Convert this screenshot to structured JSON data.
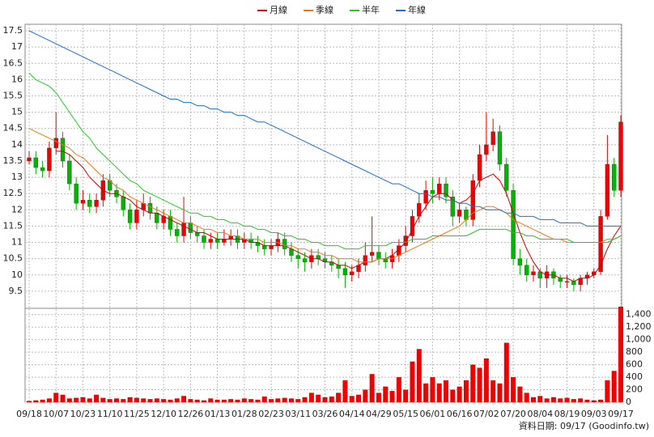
{
  "chart_data": {
    "type": "candlestick",
    "legend": "top",
    "grid": true,
    "up_color": "#ee0000",
    "down_color": "#00b400",
    "categories": [
      "09/18",
      null,
      null,
      null,
      "10/07",
      null,
      null,
      null,
      "10/23",
      null,
      null,
      null,
      "11/10",
      null,
      null,
      null,
      "11/25",
      null,
      null,
      null,
      "12/10",
      null,
      null,
      null,
      "12/26",
      null,
      null,
      null,
      "01/13",
      null,
      null,
      null,
      "01/28",
      null,
      null,
      null,
      "02/23",
      null,
      null,
      null,
      "03/11",
      null,
      null,
      null,
      "03/26",
      null,
      null,
      null,
      "04/14",
      null,
      null,
      null,
      "04/29",
      null,
      null,
      null,
      "05/15",
      null,
      null,
      null,
      "06/01",
      null,
      null,
      null,
      "06/16",
      null,
      null,
      null,
      "07/02",
      null,
      null,
      null,
      "07/20",
      null,
      null,
      null,
      "08/04",
      null,
      null,
      null,
      "08/19",
      null,
      null,
      null,
      "09/03",
      null,
      null,
      null,
      "09/17"
    ],
    "open": [
      13.5,
      13.6,
      13.3,
      13.2,
      13.9,
      14.2,
      13.5,
      12.8,
      12.2,
      12.3,
      12.1,
      12.3,
      12.9,
      12.6,
      12.4,
      12.0,
      11.6,
      12.0,
      12.2,
      11.9,
      11.6,
      11.8,
      11.4,
      11.2,
      11.6,
      11.3,
      11.2,
      11.0,
      11.1,
      11.0,
      11.1,
      11.2,
      11.0,
      11.1,
      11.0,
      10.9,
      10.8,
      10.9,
      11.1,
      10.8,
      10.6,
      10.5,
      10.4,
      10.6,
      10.5,
      10.4,
      10.3,
      10.2,
      10.0,
      10.1,
      10.3,
      10.6,
      10.7,
      10.5,
      10.4,
      10.6,
      10.9,
      11.2,
      11.8,
      12.2,
      12.6,
      12.5,
      12.8,
      12.4,
      11.8,
      12.0,
      11.7,
      12.9,
      13.7,
      14.0,
      14.4,
      13.4,
      12.6,
      10.5,
      10.3,
      10.0,
      10.1,
      9.9,
      10.1,
      9.9,
      9.8,
      9.8,
      9.7,
      9.9,
      10.0,
      10.1,
      11.8,
      13.4,
      12.6
    ],
    "high": [
      13.8,
      13.8,
      13.5,
      14.1,
      15.0,
      14.4,
      13.7,
      13.0,
      12.6,
      12.5,
      12.5,
      13.1,
      13.1,
      12.8,
      12.6,
      12.2,
      12.3,
      12.5,
      12.4,
      12.1,
      12.0,
      12.0,
      11.6,
      12.4,
      11.8,
      11.5,
      11.4,
      11.3,
      11.3,
      11.4,
      11.4,
      11.4,
      11.3,
      11.3,
      11.2,
      11.1,
      11.1,
      11.3,
      11.3,
      11.0,
      10.8,
      10.7,
      10.8,
      10.8,
      10.7,
      10.6,
      10.5,
      10.4,
      10.3,
      10.5,
      11.0,
      11.8,
      10.9,
      10.7,
      10.8,
      11.1,
      11.5,
      12.0,
      12.5,
      12.9,
      13.0,
      13.0,
      13.0,
      12.6,
      12.2,
      12.1,
      13.1,
      14.0,
      15.0,
      14.8,
      14.6,
      13.6,
      12.8,
      10.8,
      10.5,
      10.3,
      10.2,
      10.3,
      10.2,
      10.0,
      10.0,
      9.9,
      10.0,
      10.1,
      10.2,
      12.0,
      14.3,
      13.6,
      14.9
    ],
    "low": [
      13.4,
      13.1,
      13.0,
      13.0,
      13.7,
      13.3,
      12.6,
      12.0,
      12.0,
      11.9,
      11.9,
      12.1,
      12.4,
      12.2,
      11.8,
      11.4,
      11.4,
      11.8,
      11.7,
      11.4,
      11.4,
      11.2,
      11.0,
      11.0,
      11.1,
      11.0,
      10.8,
      10.8,
      10.8,
      10.9,
      10.9,
      10.8,
      10.8,
      10.8,
      10.7,
      10.6,
      10.6,
      10.7,
      10.6,
      10.4,
      10.2,
      10.1,
      10.2,
      10.3,
      10.2,
      10.1,
      9.9,
      9.6,
      9.8,
      9.9,
      10.1,
      10.4,
      10.3,
      10.2,
      10.2,
      10.4,
      10.7,
      11.0,
      11.6,
      12.0,
      12.2,
      12.3,
      12.2,
      11.5,
      11.6,
      11.5,
      11.5,
      12.7,
      13.5,
      13.8,
      13.2,
      12.4,
      10.3,
      10.0,
      9.8,
      9.8,
      9.6,
      9.6,
      9.7,
      9.6,
      9.6,
      9.5,
      9.5,
      9.7,
      9.9,
      10.0,
      11.7,
      12.4,
      12.4
    ],
    "close": [
      13.6,
      13.3,
      13.2,
      13.9,
      14.2,
      13.5,
      12.8,
      12.2,
      12.3,
      12.1,
      12.3,
      12.9,
      12.6,
      12.4,
      12.0,
      11.6,
      12.0,
      12.2,
      11.9,
      11.6,
      11.8,
      11.4,
      11.2,
      11.6,
      11.3,
      11.2,
      11.0,
      11.1,
      11.0,
      11.1,
      11.2,
      11.0,
      11.1,
      11.0,
      10.9,
      10.8,
      10.9,
      11.1,
      10.8,
      10.6,
      10.5,
      10.4,
      10.6,
      10.5,
      10.4,
      10.3,
      10.2,
      10.0,
      10.1,
      10.3,
      10.6,
      10.7,
      10.5,
      10.4,
      10.6,
      10.9,
      11.2,
      11.8,
      12.2,
      12.6,
      12.5,
      12.8,
      12.4,
      11.8,
      12.0,
      11.7,
      12.9,
      13.7,
      14.0,
      14.4,
      13.4,
      12.6,
      10.5,
      10.3,
      10.0,
      10.1,
      9.9,
      10.1,
      9.9,
      9.8,
      9.8,
      9.7,
      9.9,
      10.0,
      10.1,
      11.8,
      13.4,
      12.6,
      14.7
    ],
    "ylim": [
      9,
      17.7
    ],
    "yticks": [
      9.5,
      10,
      10.5,
      11,
      11.5,
      12,
      12.5,
      13,
      13.5,
      14,
      14.5,
      15,
      15.5,
      16,
      16.5,
      17,
      17.5
    ],
    "series": [
      {
        "name": "月線",
        "color": "#cc0000",
        "values": [
          null,
          null,
          null,
          null,
          13.8,
          13.8,
          13.7,
          13.5,
          13.3,
          13.0,
          12.8,
          12.6,
          12.5,
          12.5,
          12.4,
          12.3,
          12.1,
          12.0,
          11.9,
          11.9,
          11.8,
          11.7,
          11.6,
          11.5,
          11.4,
          11.3,
          11.3,
          11.2,
          11.1,
          11.1,
          11.1,
          11.1,
          11.1,
          11.0,
          11.0,
          10.9,
          10.9,
          10.9,
          10.9,
          10.8,
          10.7,
          10.6,
          10.5,
          10.5,
          10.4,
          10.4,
          10.3,
          10.3,
          10.2,
          10.3,
          10.4,
          10.4,
          10.5,
          10.5,
          10.6,
          10.8,
          11.0,
          11.4,
          11.8,
          12.1,
          12.4,
          12.5,
          12.5,
          12.3,
          12.2,
          12.3,
          12.5,
          12.9,
          13.0,
          13.1,
          12.9,
          12.5,
          11.9,
          11.3,
          10.8,
          10.4,
          10.1,
          10.0,
          10.0,
          9.9,
          9.9,
          9.8,
          9.9,
          9.9,
          10.0,
          10.3,
          10.8,
          11.2,
          11.5
        ]
      },
      {
        "name": "季線",
        "color": "#f07a10",
        "values": [
          14.5,
          14.4,
          14.3,
          14.2,
          14.1,
          14.0,
          13.9,
          13.7,
          13.6,
          13.4,
          13.2,
          13.0,
          12.9,
          12.7,
          12.6,
          12.4,
          12.3,
          12.2,
          12.1,
          12.0,
          11.9,
          11.8,
          11.7,
          11.6,
          11.6,
          11.5,
          11.4,
          11.4,
          11.3,
          11.3,
          11.2,
          11.2,
          11.1,
          11.1,
          11.1,
          11.0,
          11.0,
          11.0,
          10.9,
          10.9,
          10.8,
          10.8,
          10.7,
          10.7,
          10.6,
          10.6,
          10.5,
          10.5,
          10.5,
          10.4,
          10.4,
          10.4,
          10.5,
          10.5,
          10.5,
          10.6,
          10.7,
          10.8,
          10.9,
          11.0,
          11.1,
          11.2,
          11.3,
          11.4,
          11.5,
          11.7,
          11.9,
          12.0,
          12.1,
          12.1,
          12.0,
          11.9,
          11.7,
          11.6,
          11.5,
          11.4,
          11.3,
          11.2,
          11.1,
          11.1,
          11.0,
          11.0,
          11.0,
          11.0,
          11.0,
          11.0,
          11.1,
          11.1,
          11.2
        ]
      },
      {
        "name": "半年",
        "color": "#22cc22",
        "values": [
          16.2,
          16.0,
          15.9,
          15.8,
          15.6,
          15.3,
          15.0,
          14.7,
          14.4,
          14.2,
          13.9,
          13.7,
          13.5,
          13.3,
          13.1,
          12.9,
          12.8,
          12.6,
          12.5,
          12.4,
          12.3,
          12.2,
          12.1,
          12.0,
          11.9,
          11.9,
          11.8,
          11.8,
          11.7,
          11.7,
          11.6,
          11.6,
          11.5,
          11.5,
          11.4,
          11.4,
          11.3,
          11.3,
          11.2,
          11.2,
          11.1,
          11.1,
          11.0,
          11.0,
          10.9,
          10.9,
          10.9,
          10.8,
          10.8,
          10.8,
          10.9,
          10.9,
          10.9,
          10.9,
          11.0,
          11.0,
          11.0,
          11.1,
          11.1,
          11.1,
          11.2,
          11.2,
          11.2,
          11.2,
          11.2,
          11.2,
          11.3,
          11.4,
          11.4,
          11.4,
          11.4,
          11.4,
          11.3,
          11.3,
          11.2,
          11.2,
          11.1,
          11.1,
          11.1,
          11.1,
          11.1,
          11.0,
          11.0,
          11.0,
          11.0,
          11.0,
          11.0,
          11.1,
          11.2
        ]
      },
      {
        "name": "年線",
        "color": "#1a6fd0",
        "values": [
          17.5,
          17.4,
          17.3,
          17.2,
          17.1,
          17.0,
          16.9,
          16.8,
          16.7,
          16.6,
          16.5,
          16.4,
          16.3,
          16.2,
          16.1,
          16.0,
          15.9,
          15.8,
          15.7,
          15.6,
          15.5,
          15.4,
          15.4,
          15.3,
          15.3,
          15.2,
          15.2,
          15.1,
          15.1,
          15.0,
          15.0,
          14.9,
          14.9,
          14.8,
          14.7,
          14.7,
          14.6,
          14.5,
          14.4,
          14.3,
          14.2,
          14.1,
          14.0,
          13.9,
          13.8,
          13.7,
          13.6,
          13.5,
          13.4,
          13.3,
          13.2,
          13.1,
          13.0,
          12.9,
          12.8,
          12.8,
          12.7,
          12.6,
          12.5,
          12.5,
          12.4,
          12.4,
          12.3,
          12.3,
          12.2,
          12.2,
          12.1,
          12.1,
          12.0,
          12.0,
          12.0,
          11.9,
          11.9,
          11.8,
          11.8,
          11.8,
          11.7,
          11.7,
          11.7,
          11.6,
          11.6,
          11.6,
          11.6,
          11.5,
          11.5,
          11.5,
          11.5,
          11.5,
          11.5
        ]
      }
    ],
    "volume": {
      "color": "#ee0000",
      "ylim": [
        0,
        1500
      ],
      "yticks": [
        0,
        200,
        400,
        600,
        800,
        {
          "value": 1000,
          "label": "1,000"
        },
        {
          "value": 1200,
          "label": "1,200"
        },
        {
          "value": 1400,
          "label": "1,400"
        }
      ],
      "values": [
        20,
        30,
        40,
        60,
        150,
        120,
        60,
        70,
        80,
        60,
        120,
        70,
        50,
        60,
        50,
        80,
        70,
        60,
        50,
        60,
        50,
        40,
        60,
        100,
        50,
        40,
        30,
        60,
        40,
        40,
        50,
        40,
        60,
        50,
        40,
        90,
        50,
        60,
        70,
        60,
        50,
        80,
        150,
        120,
        80,
        90,
        150,
        350,
        100,
        120,
        200,
        450,
        150,
        250,
        180,
        400,
        200,
        650,
        850,
        300,
        400,
        300,
        350,
        200,
        250,
        350,
        600,
        550,
        700,
        350,
        300,
        950,
        400,
        250,
        150,
        80,
        100,
        60,
        80,
        60,
        70,
        50,
        60,
        40,
        30,
        40,
        350,
        500,
        1550
      ]
    },
    "footnote": "資料日期: 09/17 (Goodinfo.tw)"
  }
}
